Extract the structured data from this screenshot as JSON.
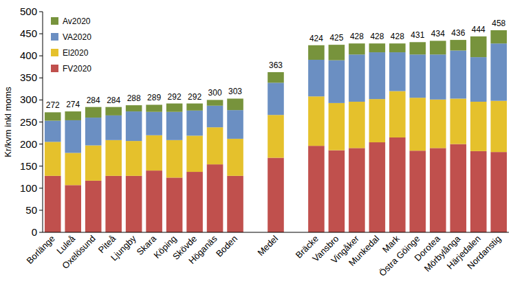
{
  "chart_data": {
    "type": "bar",
    "stacked": true,
    "grid": false,
    "legend": "upper left",
    "y_label": "Kr/kvm inkl moms",
    "categories": [
      "Borlänge",
      "Luleå",
      "Oxelösund",
      "Piteå",
      "Ljungby",
      "Skara",
      "Köping",
      "Skövde",
      "Höganäs",
      "Boden",
      null,
      "Medel",
      null,
      "Bräcke",
      "Vansbro",
      "Vingåker",
      "Munkedal",
      "Mark",
      "Östra Göinge",
      "Dorotea",
      "Mörbylånga",
      "Härjedalen",
      "Nordanstig"
    ],
    "series": [
      {
        "name": "FV2020",
        "color": "#c0504d",
        "values": [
          128,
          107,
          117,
          128,
          128,
          140,
          124,
          137,
          154,
          128,
          null,
          169,
          null,
          196,
          186,
          191,
          204,
          215,
          185,
          191,
          200,
          184,
          182
        ]
      },
      {
        "name": "El2020",
        "color": "#e5c12c",
        "values": [
          77,
          73,
          80,
          81,
          79,
          80,
          85,
          82,
          84,
          84,
          null,
          97,
          null,
          112,
          107,
          105,
          98,
          105,
          120,
          110,
          103,
          112,
          116
        ]
      },
      {
        "name": "VA2020",
        "color": "#6b8fc2",
        "values": [
          48,
          74,
          63,
          56,
          67,
          53,
          64,
          57,
          49,
          65,
          null,
          73,
          null,
          83,
          97,
          107,
          106,
          88,
          98,
          102,
          109,
          101,
          130
        ]
      },
      {
        "name": "Av2020",
        "color": "#77933c",
        "values": [
          19,
          20,
          24,
          19,
          14,
          16,
          19,
          16,
          13,
          26,
          null,
          24,
          null,
          33,
          35,
          25,
          20,
          20,
          28,
          31,
          24,
          47,
          30
        ]
      }
    ],
    "totals": [
      272,
      274,
      284,
      284,
      288,
      289,
      292,
      292,
      300,
      303,
      null,
      363,
      null,
      424,
      425,
      428,
      428,
      428,
      431,
      434,
      436,
      444,
      458
    ],
    "ylim": [
      0,
      500
    ],
    "yticks": [
      0,
      50,
      100,
      150,
      200,
      250,
      300,
      350,
      400,
      450,
      500
    ]
  }
}
